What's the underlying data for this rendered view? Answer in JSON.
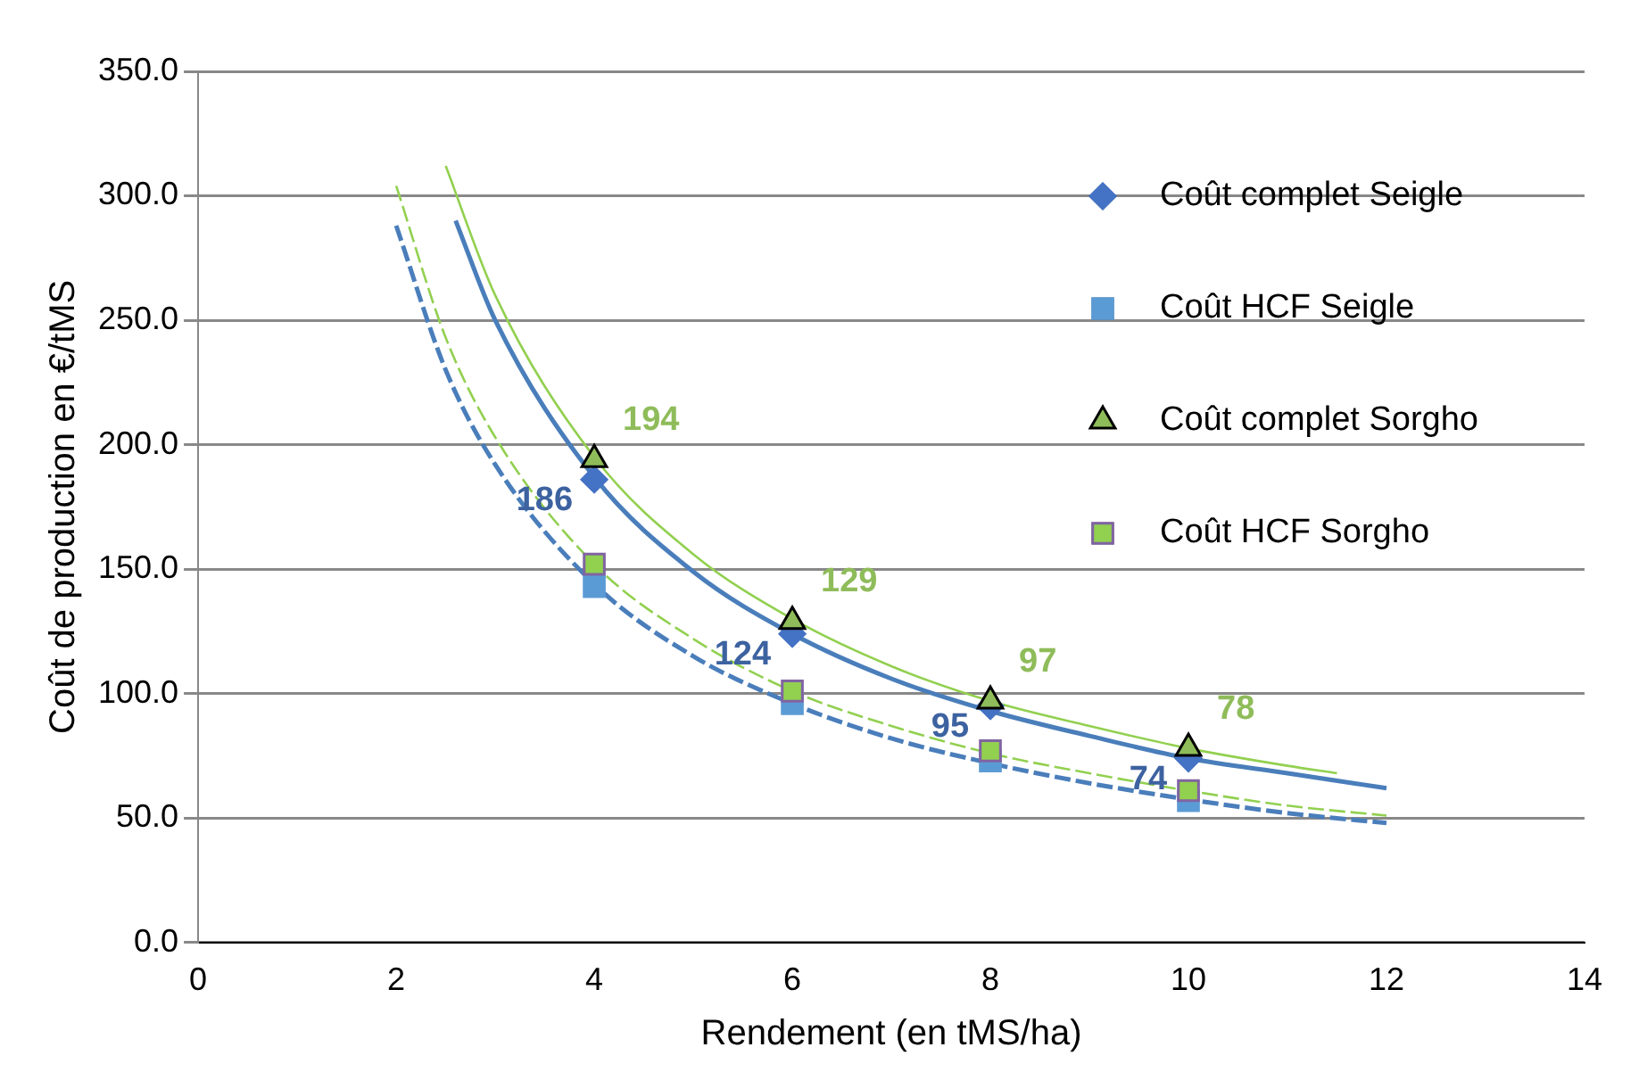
{
  "chart_data": {
    "type": "scatter",
    "xlabel": "Rendement (en tMS/ha)",
    "ylabel": "Coût de production en €/tMS",
    "xlim": [
      0,
      14
    ],
    "xticks": [
      0,
      2,
      4,
      6,
      8,
      10,
      12,
      14
    ],
    "ylim": [
      0,
      350
    ],
    "yticks": [
      {
        "value": 0,
        "label": "0.0"
      },
      {
        "value": 50,
        "label": "50.0"
      },
      {
        "value": 100,
        "label": "100.0"
      },
      {
        "value": 150,
        "label": "150.0"
      },
      {
        "value": 200,
        "label": "200.0"
      },
      {
        "value": 250,
        "label": "250.0"
      },
      {
        "value": 300,
        "label": "300.0"
      },
      {
        "value": 350,
        "label": "350.0"
      }
    ],
    "grid": "y",
    "legend": "right",
    "series": [
      {
        "type": "line",
        "color": "#4a7ebb",
        "marker": "none",
        "line_style": "solid",
        "x": [
          2.6,
          3,
          4,
          5,
          6,
          7,
          8,
          9,
          10,
          11,
          12
        ],
        "values": [
          290,
          250,
          187,
          149,
          124,
          106,
          93,
          83,
          74,
          68,
          62
        ]
      },
      {
        "type": "line",
        "color": "#4a7ebb",
        "marker": "none",
        "line_style": "dashed",
        "x": [
          2,
          2.5,
          3,
          4,
          5,
          6,
          7,
          8,
          9,
          10,
          11,
          12
        ],
        "values": [
          288,
          230,
          192,
          144,
          115,
          96,
          82,
          72,
          64,
          57.5,
          52,
          48
        ]
      },
      {
        "type": "line",
        "color": "#92d050",
        "marker": "none",
        "line_style": "solid",
        "x": [
          2.5,
          3,
          4,
          5,
          6,
          7,
          8,
          9,
          10,
          11,
          11.5
        ],
        "values": [
          312,
          260,
          195,
          156,
          130,
          111,
          97,
          87,
          78,
          71,
          68
        ]
      },
      {
        "type": "line",
        "color": "#92d050",
        "marker": "none",
        "line_style": "dashed",
        "x": [
          2,
          2.5,
          3,
          4,
          5,
          6,
          7,
          8,
          9,
          10,
          11,
          12
        ],
        "values": [
          304,
          243,
          203,
          152,
          122,
          101,
          87,
          76,
          68,
          61,
          55,
          51
        ]
      },
      {
        "name": "Coût complet Seigle",
        "color": "#4472c4",
        "marker": "diamond",
        "x": [
          4,
          6,
          8,
          10
        ],
        "values": [
          186,
          124,
          95,
          74
        ],
        "value_labels": [
          "186",
          "124",
          "95",
          "74"
        ]
      },
      {
        "name": "Coût HCF Seigle",
        "color": "#5b9bd5",
        "marker": "square",
        "x": [
          4,
          6,
          8,
          10
        ],
        "values": [
          143,
          96,
          73,
          57
        ]
      },
      {
        "name": "Coût complet Sorgho",
        "color": "#8fbc5a",
        "marker": "triangle",
        "x": [
          4,
          6,
          8,
          10
        ],
        "values": [
          194,
          129,
          97,
          78
        ],
        "value_labels": [
          "194",
          "129",
          "97",
          "78"
        ]
      },
      {
        "name": "Coût HCF Sorgho",
        "color": "#92d050",
        "marker": "square",
        "x": [
          4,
          6,
          8,
          10
        ],
        "values": [
          152,
          101,
          77,
          61
        ]
      }
    ]
  }
}
